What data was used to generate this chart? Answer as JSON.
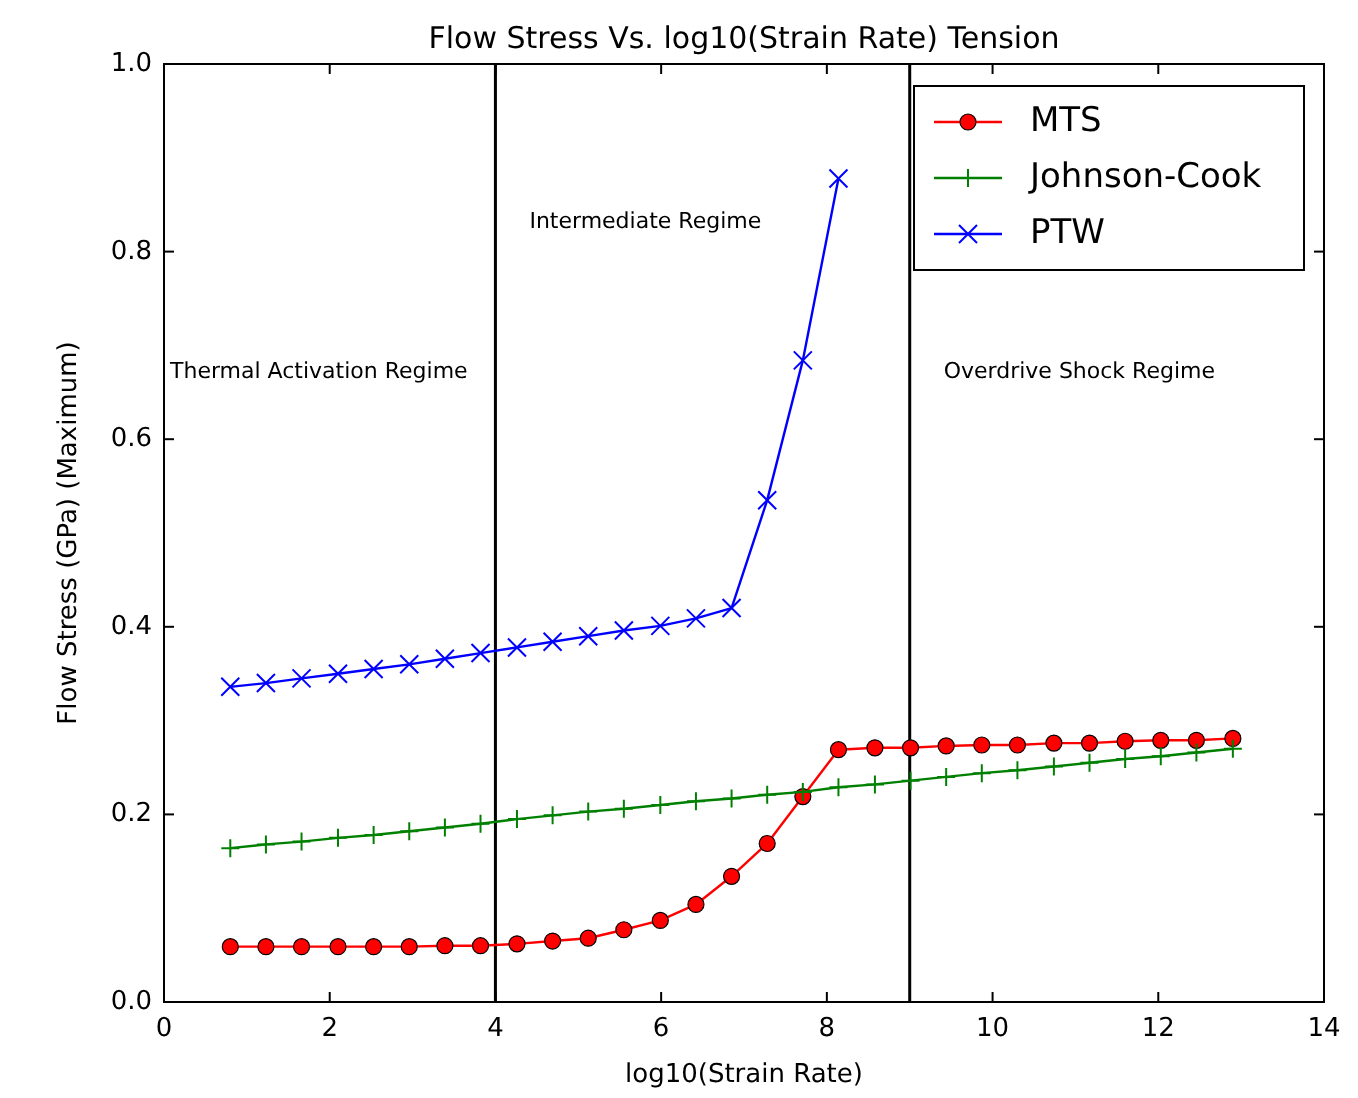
{
  "chart_data": {
    "type": "line",
    "title": "Flow Stress Vs. log10(Strain Rate) Tension",
    "xlabel": "log10(Strain Rate)",
    "ylabel": "Flow Stress (GPa) (Maximum)",
    "x": [
      0.8,
      1.23,
      1.66,
      2.1,
      2.53,
      2.96,
      3.39,
      3.82,
      4.26,
      4.69,
      5.12,
      5.55,
      5.99,
      6.42,
      6.85,
      7.28,
      7.71,
      8.14,
      8.58,
      9.01,
      9.44,
      9.87,
      10.3,
      10.74,
      11.17,
      11.6,
      12.03,
      12.46,
      12.9
    ],
    "series": [
      {
        "name": "MTS",
        "color": "#ff0000",
        "marker": "circle",
        "values": [
          0.059,
          0.059,
          0.059,
          0.059,
          0.059,
          0.059,
          0.06,
          0.06,
          0.062,
          0.065,
          0.068,
          0.077,
          0.087,
          0.104,
          0.134,
          0.169,
          0.219,
          0.269,
          0.271,
          0.271,
          0.273,
          0.274,
          0.274,
          0.276,
          0.276,
          0.278,
          0.279,
          0.279,
          0.281
        ]
      },
      {
        "name": "Johnson-Cook",
        "color": "#008000",
        "marker": "plus",
        "values": [
          0.164,
          0.168,
          0.171,
          0.175,
          0.178,
          0.182,
          0.186,
          0.19,
          0.195,
          0.199,
          0.203,
          0.206,
          0.21,
          0.214,
          0.217,
          0.221,
          0.224,
          0.229,
          0.232,
          0.236,
          0.24,
          0.244,
          0.247,
          0.251,
          0.255,
          0.259,
          0.262,
          0.266,
          0.27
        ]
      },
      {
        "name": "PTW",
        "color": "#0000ff",
        "marker": "cross",
        "values": [
          0.336,
          0.34,
          0.345,
          0.35,
          0.355,
          0.36,
          0.366,
          0.372,
          0.378,
          0.384,
          0.39,
          0.396,
          0.401,
          0.409,
          0.42,
          0.535,
          0.684,
          0.878,
          null,
          null,
          null,
          null,
          null,
          null,
          null,
          null,
          null,
          null,
          null
        ]
      }
    ],
    "xlim": [
      0,
      14
    ],
    "xticks": [
      0,
      2,
      4,
      6,
      8,
      10,
      12,
      14
    ],
    "ylim": [
      0,
      1.0
    ],
    "yticks": [
      {
        "value": 0,
        "label": "0.0"
      },
      {
        "value": 0.2,
        "label": "0.2"
      },
      {
        "value": 0.4,
        "label": "0.4"
      },
      {
        "value": 0.6,
        "label": "0.6"
      },
      {
        "value": 0.8,
        "label": "0.8"
      },
      {
        "value": 1.0,
        "label": "1.0"
      }
    ],
    "ref_lines": [
      {
        "axis": "x",
        "value": 4,
        "color": "#000000"
      },
      {
        "axis": "x",
        "value": 9,
        "color": "#000000"
      }
    ],
    "annotations": [
      "Thermal Activation Regime",
      "Intermediate Regime",
      "Overdrive Shock Regime"
    ],
    "grid": false,
    "legend": "top right",
    "line_style": "solid"
  }
}
